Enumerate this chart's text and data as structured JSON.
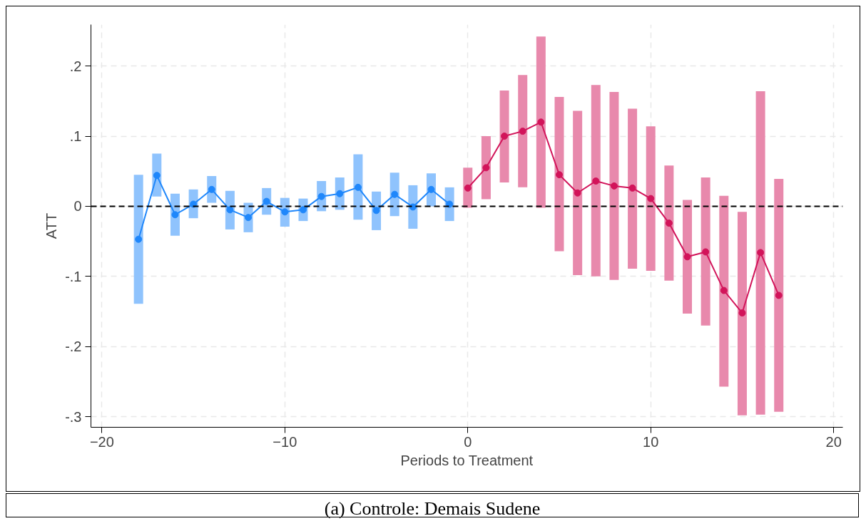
{
  "chart_data": {
    "type": "line",
    "xlabel": "Periods to Treatment",
    "ylabel": "ATT",
    "annotations": [
      "(a) Controle: Demais Sudene"
    ],
    "xlim": [
      -20.6,
      20.5
    ],
    "xticks": [
      -20,
      -10,
      0,
      10,
      20
    ],
    "ylim": [
      -0.315,
      0.259
    ],
    "yticks": [
      {
        "value": -0.3,
        "label": "-.3"
      },
      {
        "value": -0.2,
        "label": "-.2"
      },
      {
        "value": -0.1,
        "label": "-.1"
      },
      0,
      {
        "value": 0.1,
        "label": ".1"
      },
      {
        "value": 0.2,
        "label": ".2"
      }
    ],
    "grid": true,
    "marker": "circle",
    "line_style": "solid",
    "ref_lines": [
      {
        "axis": "y",
        "value": 0,
        "color": "#000000",
        "line_style": "dashed"
      }
    ],
    "series": [
      {
        "color": "#1f87fb",
        "x": [
          -18,
          -17,
          -16,
          -15,
          -14,
          -13,
          -12,
          -11,
          -10,
          -9,
          -8,
          -7,
          -6,
          -5,
          -4,
          -3,
          -2,
          -1
        ],
        "values": [
          -0.047,
          0.044,
          -0.012,
          0.003,
          0.024,
          -0.005,
          -0.016,
          0.007,
          -0.008,
          -0.005,
          0.014,
          0.018,
          0.027,
          -0.006,
          0.017,
          -0.001,
          0.024,
          0.003
        ],
        "errors": [
          [
            -0.139,
            0.045
          ],
          [
            0.014,
            0.075
          ],
          [
            -0.042,
            0.018
          ],
          [
            -0.017,
            0.024
          ],
          [
            0.005,
            0.043
          ],
          [
            -0.033,
            0.022
          ],
          [
            -0.037,
            0.005
          ],
          [
            -0.012,
            0.026
          ],
          [
            -0.029,
            0.012
          ],
          [
            -0.021,
            0.011
          ],
          [
            -0.007,
            0.036
          ],
          [
            -0.005,
            0.041
          ],
          [
            -0.019,
            0.074
          ],
          [
            -0.034,
            0.021
          ],
          [
            -0.014,
            0.048
          ],
          [
            -0.032,
            0.03
          ],
          [
            0.0,
            0.047
          ],
          [
            -0.021,
            0.027
          ]
        ]
      },
      {
        "color": "#d2145a",
        "x": [
          0,
          1,
          2,
          3,
          4,
          5,
          6,
          7,
          8,
          9,
          10,
          11,
          12,
          13,
          14,
          15,
          16,
          17
        ],
        "values": [
          0.026,
          0.055,
          0.1,
          0.107,
          0.12,
          0.045,
          0.019,
          0.036,
          0.029,
          0.026,
          0.011,
          -0.024,
          -0.072,
          -0.065,
          -0.12,
          -0.152,
          -0.066,
          -0.127
        ],
        "errors": [
          [
            -0.002,
            0.055
          ],
          [
            0.01,
            0.1
          ],
          [
            0.034,
            0.165
          ],
          [
            0.027,
            0.187
          ],
          [
            -0.002,
            0.242
          ],
          [
            -0.064,
            0.156
          ],
          [
            -0.098,
            0.136
          ],
          [
            -0.1,
            0.173
          ],
          [
            -0.105,
            0.163
          ],
          [
            -0.089,
            0.139
          ],
          [
            -0.092,
            0.114
          ],
          [
            -0.106,
            0.058
          ],
          [
            -0.153,
            0.009
          ],
          [
            -0.17,
            0.041
          ],
          [
            -0.257,
            0.015
          ],
          [
            -0.298,
            -0.008
          ],
          [
            -0.297,
            0.164
          ],
          [
            -0.293,
            0.039
          ]
        ]
      }
    ]
  }
}
